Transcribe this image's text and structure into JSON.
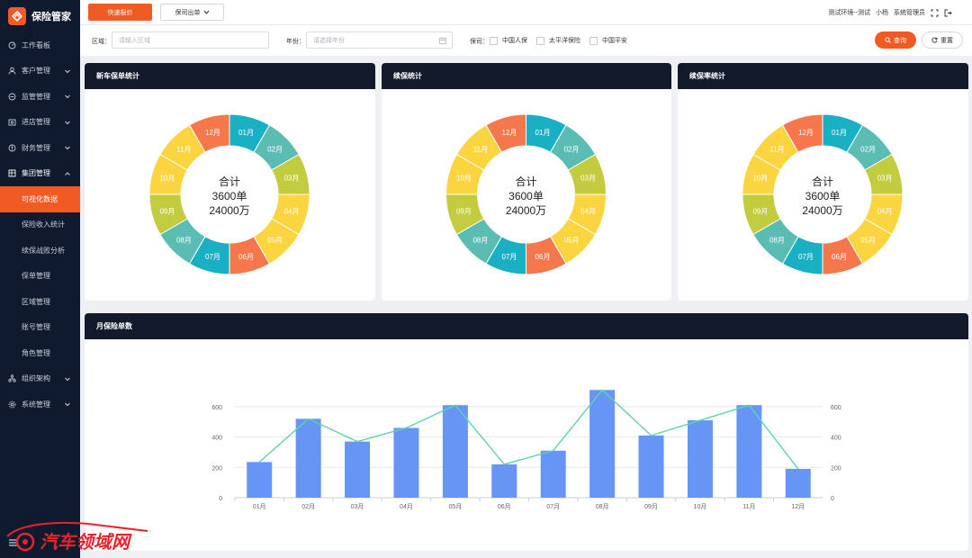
{
  "app": {
    "title": "保险管家"
  },
  "sidebar": {
    "items": [
      {
        "label": "工作看板",
        "icon": "dashboard-icon",
        "chevron": false
      },
      {
        "label": "客户管理",
        "icon": "user-icon",
        "chevron": true
      },
      {
        "label": "监管管理",
        "icon": "monitor-icon",
        "chevron": true
      },
      {
        "label": "进店管理",
        "icon": "store-icon",
        "chevron": true
      },
      {
        "label": "财务管理",
        "icon": "finance-icon",
        "chevron": true
      },
      {
        "label": "集团管理",
        "icon": "group-icon",
        "chevron": true,
        "open": true
      }
    ],
    "sub_items": [
      {
        "label": "可视化数据",
        "active": true
      },
      {
        "label": "保险收入统计"
      },
      {
        "label": "续保战败分析"
      },
      {
        "label": "保单管理"
      },
      {
        "label": "区域管理"
      },
      {
        "label": "账号管理"
      },
      {
        "label": "角色管理"
      }
    ],
    "bottom_items": [
      {
        "label": "组织架构",
        "icon": "org-icon"
      },
      {
        "label": "系统管理",
        "icon": "settings-icon"
      }
    ]
  },
  "topbar": {
    "quick_quote": "快速报价",
    "insure_dropdown": "保司出单",
    "env": "测试环境--测试",
    "user": "小杨",
    "role": "系统管理员"
  },
  "filters": {
    "region_label": "区域：",
    "region_placeholder": "请输入区域",
    "year_label": "年份：",
    "year_placeholder": "请选择年份",
    "company_label": "保司：",
    "companies": [
      "中国人保",
      "太平洋保险",
      "中国平安"
    ],
    "search_label": "查询",
    "reset_label": "重置"
  },
  "donut_cards": [
    {
      "title": "新车保单统计",
      "center_line1": "合计",
      "center_line2": "3600单",
      "center_line3": "24000万"
    },
    {
      "title": "续保统计",
      "center_line1": "合计",
      "center_line2": "3600单",
      "center_line3": "24000万"
    },
    {
      "title": "续保率统计",
      "center_line1": "合计",
      "center_line2": "3600单",
      "center_line3": "24000万"
    }
  ],
  "donut_segments": [
    {
      "label": "01月",
      "color": "#1ab0c4"
    },
    {
      "label": "02月",
      "color": "#5bbcb4"
    },
    {
      "label": "03月",
      "color": "#c3cb3e"
    },
    {
      "label": "04月",
      "color": "#fad53f"
    },
    {
      "label": "05月",
      "color": "#fad53f"
    },
    {
      "label": "06月",
      "color": "#f7774d"
    },
    {
      "label": "07月",
      "color": "#1ab0c4"
    },
    {
      "label": "08月",
      "color": "#5bbcb4"
    },
    {
      "label": "09月",
      "color": "#c3cb3e"
    },
    {
      "label": "10月",
      "color": "#fad53f"
    },
    {
      "label": "11月",
      "color": "#fad53f"
    },
    {
      "label": "12月",
      "color": "#f7774d"
    }
  ],
  "bar_card": {
    "title": "月保险单数"
  },
  "chart_data": {
    "type": "bar",
    "categories": [
      "01月",
      "02月",
      "03月",
      "04月",
      "05月",
      "06月",
      "07月",
      "08月",
      "09月",
      "10月",
      "11月",
      "12月"
    ],
    "series": [
      {
        "type": "bar",
        "values": [
          235,
          520,
          370,
          460,
          610,
          220,
          310,
          710,
          410,
          510,
          610,
          190
        ],
        "color": "#6695f6"
      },
      {
        "type": "line",
        "values": [
          235,
          520,
          370,
          460,
          610,
          220,
          310,
          710,
          410,
          510,
          610,
          190
        ],
        "color": "#5fd3a8"
      }
    ],
    "ylim": [
      0,
      700
    ],
    "yticks": [
      0,
      200,
      400,
      600
    ],
    "y2ticks": [
      0,
      200,
      400,
      600
    ],
    "grid": true
  },
  "watermark": {
    "text": "汽车领域网"
  }
}
